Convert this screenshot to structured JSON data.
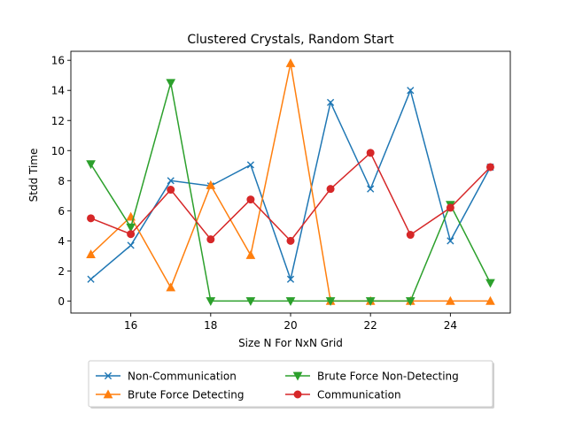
{
  "chart_data": {
    "type": "line",
    "title": "Clustered Crystals, Random Start",
    "xlabel": "Size N For NxN Grid",
    "ylabel": "Stdd Time",
    "xlim": [
      14.5,
      25.5
    ],
    "ylim": [
      -0.8,
      16.6
    ],
    "xticks": [
      16,
      18,
      20,
      22,
      24
    ],
    "yticks": [
      0,
      2,
      4,
      6,
      8,
      10,
      12,
      14,
      16
    ],
    "grid": false,
    "legend_position": "below",
    "x": [
      15,
      16,
      17,
      18,
      19,
      20,
      21,
      22,
      23,
      24,
      25
    ],
    "series": [
      {
        "name": "Non-Communication",
        "color": "#1f77b4",
        "marker": "x",
        "values": [
          1.45,
          3.7,
          8.0,
          7.65,
          9.05,
          1.45,
          13.2,
          7.45,
          14.0,
          4.0,
          8.9
        ]
      },
      {
        "name": "Brute Force Detecting",
        "color": "#ff7f0e",
        "marker": "triangle-up",
        "values": [
          3.1,
          5.6,
          0.9,
          7.7,
          3.05,
          15.8,
          0.0,
          0.0,
          0.0,
          0.0,
          0.0
        ]
      },
      {
        "name": "Brute Force Non-Detecting",
        "color": "#2ca02c",
        "marker": "triangle-down",
        "values": [
          9.1,
          4.9,
          14.5,
          0.0,
          0.0,
          0.0,
          0.0,
          0.0,
          0.0,
          6.4,
          1.2
        ]
      },
      {
        "name": "Communication",
        "color": "#d62728",
        "marker": "circle",
        "values": [
          5.5,
          4.45,
          7.4,
          4.1,
          6.75,
          4.0,
          7.45,
          9.85,
          4.4,
          6.2,
          8.9
        ]
      }
    ],
    "legend_order": [
      0,
      1,
      2,
      3
    ]
  }
}
